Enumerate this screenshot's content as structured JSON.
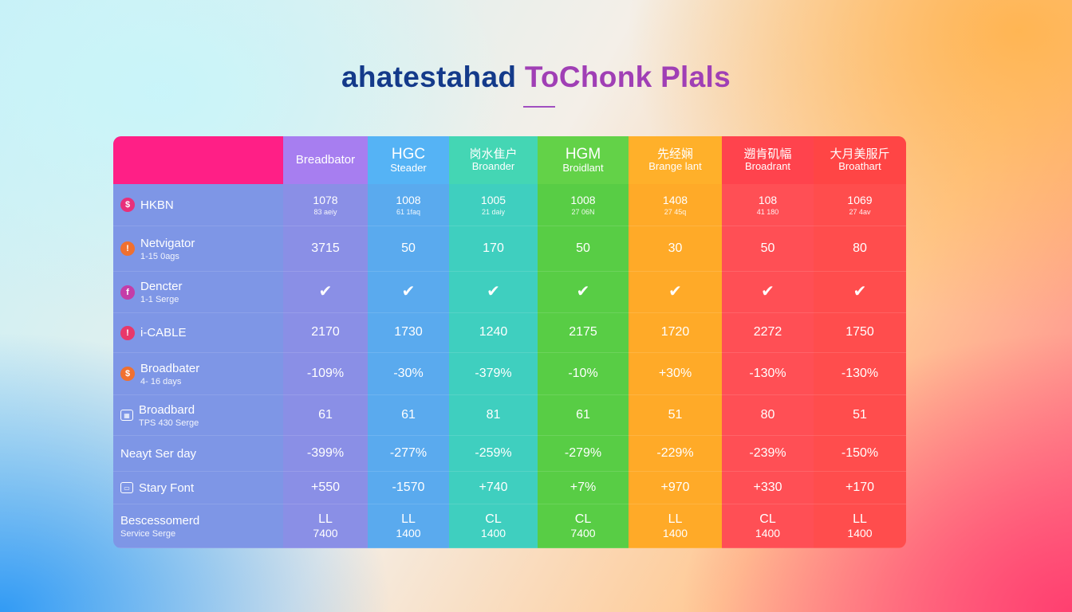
{
  "title": {
    "part1": "ahatestahad",
    "part2": "ToChonk Plals"
  },
  "colors": {
    "label_column": "#7e96e6",
    "header_label": "#ff1f86",
    "columns": [
      "#8a8fe6",
      "#5aaaee",
      "#3fcfbf",
      "#58cd45",
      "#ffaa28",
      "#ff4f55",
      "#ff4d4d"
    ],
    "headers": [
      "#a77ef0",
      "#55b3f5",
      "#44d6b4",
      "#63d248",
      "#ffb02a",
      "#ff434d",
      "#ff4545"
    ]
  },
  "columns": [
    {
      "name": "Breadbator",
      "sub": ""
    },
    {
      "name": "HGC",
      "sub": "Steader"
    },
    {
      "name": "岗水隹户",
      "sub": "Broander"
    },
    {
      "name": "HGM",
      "sub": "Broidlant"
    },
    {
      "name": "先经娴",
      "sub": "Brange lant"
    },
    {
      "name": "遡肯矶幅",
      "sub": "Broadrant"
    },
    {
      "name": "大月美服斤",
      "sub": "Broathart"
    }
  ],
  "rows": [
    {
      "label": "HKBN",
      "sub": "",
      "icon": "dollar-icon",
      "icon_char": "$",
      "icon_color": "#e8307a",
      "cells": [
        {
          "v": "1078",
          "s": "83 aeiy"
        },
        {
          "v": "1008",
          "s": "61 1faq"
        },
        {
          "v": "1005",
          "s": "21 daiy"
        },
        {
          "v": "1008",
          "s": "27 06N"
        },
        {
          "v": "1408",
          "s": "27 45q"
        },
        {
          "v": "108",
          "s": "41 180"
        },
        {
          "v": "1069",
          "s": "27 4av"
        }
      ]
    },
    {
      "label": "Netvigator",
      "sub": "1-15 0ags",
      "icon": "bell-icon",
      "icon_char": "!",
      "icon_color": "#f0702f",
      "cells": [
        {
          "v": "3715"
        },
        {
          "v": "50"
        },
        {
          "v": "170"
        },
        {
          "v": "50"
        },
        {
          "v": "30"
        },
        {
          "v": "50"
        },
        {
          "v": "80"
        }
      ]
    },
    {
      "label": "Dencter",
      "sub": "1-1 Serge",
      "icon": "f-icon",
      "icon_char": "f",
      "icon_color": "#c43da8",
      "check": "✔",
      "cells": [
        {
          "check": true
        },
        {
          "check": true
        },
        {
          "check": true
        },
        {
          "check": true
        },
        {
          "check": true
        },
        {
          "check": true
        },
        {
          "check": true
        }
      ]
    },
    {
      "label": "i-CABLE",
      "sub": "",
      "icon": "info-icon",
      "icon_char": "!",
      "icon_color": "#e8386a",
      "cells": [
        {
          "v": "2170"
        },
        {
          "v": "1730"
        },
        {
          "v": "1240"
        },
        {
          "v": "2175"
        },
        {
          "v": "1720"
        },
        {
          "v": "2272"
        },
        {
          "v": "1750"
        }
      ]
    },
    {
      "label": "Broadbater",
      "sub": "4- 16 days",
      "icon": "dollar-icon",
      "icon_char": "$",
      "icon_color": "#f07030",
      "cells": [
        {
          "v": "-109%"
        },
        {
          "v": "-30%"
        },
        {
          "v": "-379%"
        },
        {
          "v": "-10%"
        },
        {
          "v": "+30%"
        },
        {
          "v": "-130%"
        },
        {
          "v": "-130%"
        }
      ]
    },
    {
      "label": "Broadbard",
      "sub": "TPS 430 Serge",
      "icon": "grid-icon",
      "icon_char": "▦",
      "icon_color": "transparent",
      "cells": [
        {
          "v": "61"
        },
        {
          "v": "61"
        },
        {
          "v": "81"
        },
        {
          "v": "61"
        },
        {
          "v": "51"
        },
        {
          "v": "80"
        },
        {
          "v": "51"
        }
      ]
    },
    {
      "label": "Neayt Ser day",
      "sub": "",
      "icon": "",
      "icon_char": "",
      "icon_color": "",
      "cells": [
        {
          "v": "-399%"
        },
        {
          "v": "-277%"
        },
        {
          "v": "-259%"
        },
        {
          "v": "-279%"
        },
        {
          "v": "-229%"
        },
        {
          "v": "-239%"
        },
        {
          "v": "-150%"
        }
      ]
    },
    {
      "label": "Stary Font",
      "sub": "",
      "icon": "card-icon",
      "icon_char": "▭",
      "icon_color": "transparent",
      "cells": [
        {
          "v": "+550"
        },
        {
          "v": "-1570"
        },
        {
          "v": "+740"
        },
        {
          "v": "+7%"
        },
        {
          "v": "+970"
        },
        {
          "v": "+330"
        },
        {
          "v": "+170"
        }
      ]
    },
    {
      "label": "Bescessomerd",
      "sub": "Service Serge",
      "icon": "",
      "icon_char": "",
      "icon_color": "",
      "cells": [
        {
          "v": "LL",
          "s2": "7400"
        },
        {
          "v": "LL",
          "s2": "1400"
        },
        {
          "v": "CL",
          "s2": "1400"
        },
        {
          "v": "CL",
          "s2": "7400"
        },
        {
          "v": "LL",
          "s2": "1400"
        },
        {
          "v": "CL",
          "s2": "1400"
        },
        {
          "v": "LL",
          "s2": "1400"
        }
      ]
    }
  ]
}
